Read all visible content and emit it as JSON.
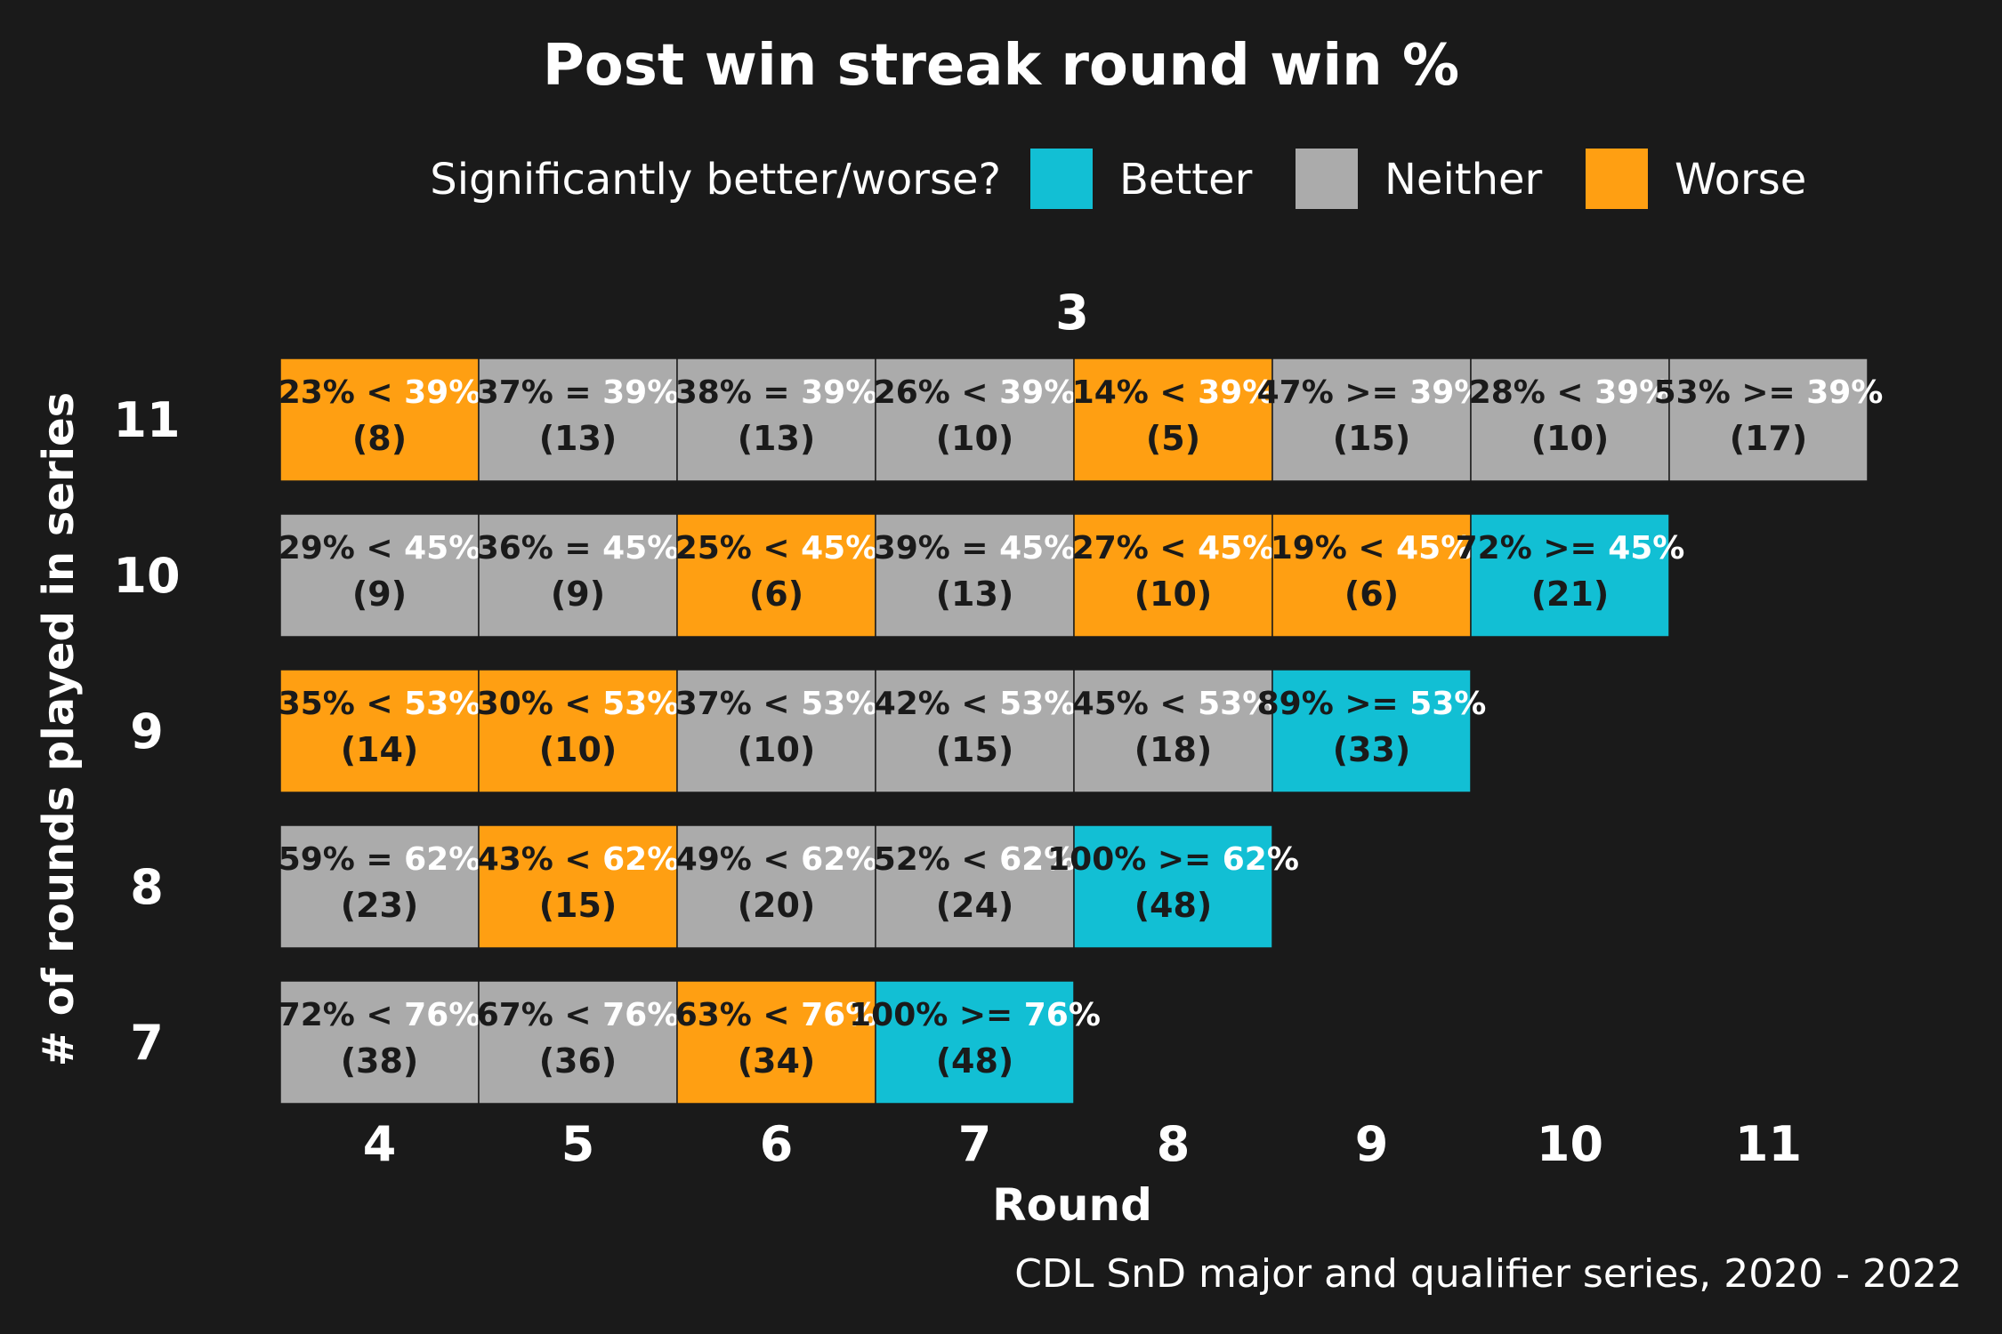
{
  "chart_data": {
    "type": "heatmap",
    "title": "Post win streak round win %",
    "facet_label": "3",
    "legend": {
      "title": "Significantly better/worse?",
      "items": [
        {
          "label": "Better",
          "color": "#12bfd4"
        },
        {
          "label": "Neither",
          "color": "#ababab"
        },
        {
          "label": "Worse",
          "color": "#ff9f12"
        }
      ]
    },
    "xlabel": "Round",
    "ylabel": "# of rounds played in series",
    "x_ticks": [
      "4",
      "5",
      "6",
      "7",
      "8",
      "9",
      "10",
      "11"
    ],
    "y_ticks": [
      "11",
      "10",
      "9",
      "8",
      "7"
    ],
    "caption": "CDL SnD major and qualifier series, 2020 - 2022",
    "rows": [
      {
        "y": "11",
        "baseline": "39%",
        "cells": [
          {
            "x": "4",
            "value": "23%",
            "op": "<",
            "n": "(8)",
            "status": "Worse"
          },
          {
            "x": "5",
            "value": "37%",
            "op": "=",
            "n": "(13)",
            "status": "Neither"
          },
          {
            "x": "6",
            "value": "38%",
            "op": "=",
            "n": "(13)",
            "status": "Neither"
          },
          {
            "x": "7",
            "value": "26%",
            "op": "<",
            "n": "(10)",
            "status": "Neither"
          },
          {
            "x": "8",
            "value": "14%",
            "op": "<",
            "n": "(5)",
            "status": "Worse"
          },
          {
            "x": "9",
            "value": "47%",
            "op": ">=",
            "n": "(15)",
            "status": "Neither"
          },
          {
            "x": "10",
            "value": "28%",
            "op": "<",
            "n": "(10)",
            "status": "Neither"
          },
          {
            "x": "11",
            "value": "53%",
            "op": ">=",
            "n": "(17)",
            "status": "Neither"
          }
        ]
      },
      {
        "y": "10",
        "baseline": "45%",
        "cells": [
          {
            "x": "4",
            "value": "29%",
            "op": "<",
            "n": "(9)",
            "status": "Neither"
          },
          {
            "x": "5",
            "value": "36%",
            "op": "=",
            "n": "(9)",
            "status": "Neither"
          },
          {
            "x": "6",
            "value": "25%",
            "op": "<",
            "n": "(6)",
            "status": "Worse"
          },
          {
            "x": "7",
            "value": "39%",
            "op": "=",
            "n": "(13)",
            "status": "Neither"
          },
          {
            "x": "8",
            "value": "27%",
            "op": "<",
            "n": "(10)",
            "status": "Worse"
          },
          {
            "x": "9",
            "value": "19%",
            "op": "<",
            "n": "(6)",
            "status": "Worse"
          },
          {
            "x": "10",
            "value": "72%",
            "op": ">=",
            "n": "(21)",
            "status": "Better"
          }
        ]
      },
      {
        "y": "9",
        "baseline": "53%",
        "cells": [
          {
            "x": "4",
            "value": "35%",
            "op": "<",
            "n": "(14)",
            "status": "Worse"
          },
          {
            "x": "5",
            "value": "30%",
            "op": "<",
            "n": "(10)",
            "status": "Worse"
          },
          {
            "x": "6",
            "value": "37%",
            "op": "<",
            "n": "(10)",
            "status": "Neither"
          },
          {
            "x": "7",
            "value": "42%",
            "op": "<",
            "n": "(15)",
            "status": "Neither"
          },
          {
            "x": "8",
            "value": "45%",
            "op": "<",
            "n": "(18)",
            "status": "Neither"
          },
          {
            "x": "9",
            "value": "89%",
            "op": ">=",
            "n": "(33)",
            "status": "Better"
          }
        ]
      },
      {
        "y": "8",
        "baseline": "62%",
        "cells": [
          {
            "x": "4",
            "value": "59%",
            "op": "=",
            "n": "(23)",
            "status": "Neither"
          },
          {
            "x": "5",
            "value": "43%",
            "op": "<",
            "n": "(15)",
            "status": "Worse"
          },
          {
            "x": "6",
            "value": "49%",
            "op": "<",
            "n": "(20)",
            "status": "Neither"
          },
          {
            "x": "7",
            "value": "52%",
            "op": "<",
            "n": "(24)",
            "status": "Neither"
          },
          {
            "x": "8",
            "value": "100%",
            "op": ">=",
            "n": "(48)",
            "status": "Better"
          }
        ]
      },
      {
        "y": "7",
        "baseline": "76%",
        "cells": [
          {
            "x": "4",
            "value": "72%",
            "op": "<",
            "n": "(38)",
            "status": "Neither"
          },
          {
            "x": "5",
            "value": "67%",
            "op": "<",
            "n": "(36)",
            "status": "Neither"
          },
          {
            "x": "6",
            "value": "63%",
            "op": "<",
            "n": "(34)",
            "status": "Worse"
          },
          {
            "x": "7",
            "value": "100%",
            "op": ">=",
            "n": "(48)",
            "status": "Better"
          }
        ]
      }
    ]
  }
}
